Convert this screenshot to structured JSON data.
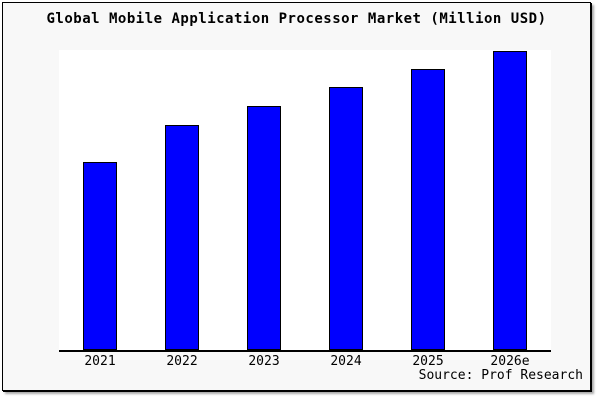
{
  "title": "Global Mobile Application Processor Market (Million USD)",
  "source": "Source: Prof Research",
  "colors": {
    "bar_fill": "#0000ff",
    "bar_border": "#000000",
    "frame_background": "#f8f8f8",
    "plot_background": "#ffffff",
    "axis": "#000000",
    "text": "#000000"
  },
  "chart_data": {
    "type": "bar",
    "title": "Global Mobile Application Processor Market (Million USD)",
    "categories": [
      "2021",
      "2022",
      "2023",
      "2024",
      "2025",
      "2026e"
    ],
    "values": [
      188,
      225,
      244,
      263,
      281,
      299
    ],
    "values_note": "no y-axis ticks or data labels shown; values are relative bar heights read from pixels",
    "xlabel": "",
    "ylabel": "",
    "ylim": [
      0,
      300
    ],
    "grid": false,
    "legend": null,
    "bar_color": "#0000ff",
    "source_annotation": "Source: Prof Research"
  }
}
